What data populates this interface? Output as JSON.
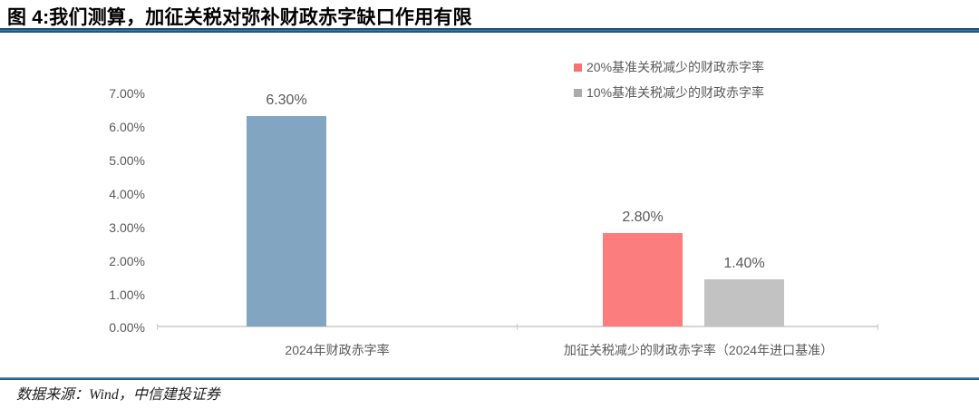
{
  "figure": {
    "title": "图 4:我们测算，加征关税对弥补财政赤字缺口作用有限",
    "source": "数据来源：Wind，中信建投证券"
  },
  "chart_data": {
    "type": "bar",
    "title": "图 4:我们测算，加征关税对弥补财政赤字缺口作用有限",
    "categories": [
      "2024年财政赤字率",
      "加征关税减少的财政赤字率（2024年进口基准）"
    ],
    "series": [
      {
        "name": "2024年财政赤字率",
        "category": "2024年财政赤字率",
        "value": 6.3,
        "label": "6.30%",
        "color": "#82A6C1"
      },
      {
        "name": "20%基准关税减少的财政赤字率",
        "category": "加征关税减少的财政赤字率（2024年进口基准）",
        "value": 2.8,
        "label": "2.80%",
        "color": "#FC7D7D"
      },
      {
        "name": "10%基准关税减少的财政赤字率",
        "category": "加征关税减少的财政赤字率（2024年进口基准）",
        "value": 1.4,
        "label": "1.40%",
        "color": "#C2C2C2"
      }
    ],
    "legend": [
      {
        "label": "20%基准关税减少的财政赤字率",
        "color": "#F77373"
      },
      {
        "label": "10%基准关税减少的财政赤字率",
        "color": "#ABABAB"
      }
    ],
    "y_axis": {
      "min": 0,
      "max": 7,
      "ticks": [
        "7.00%",
        "6.00%",
        "5.00%",
        "4.00%",
        "3.00%",
        "2.00%",
        "1.00%",
        "0.00%"
      ]
    },
    "grid": false,
    "legend_position": "top-right",
    "accent_colors": {
      "rule_blue": "#1D5A8A",
      "axis_gray": "#D6D6D6",
      "text_gray": "#595959"
    }
  }
}
